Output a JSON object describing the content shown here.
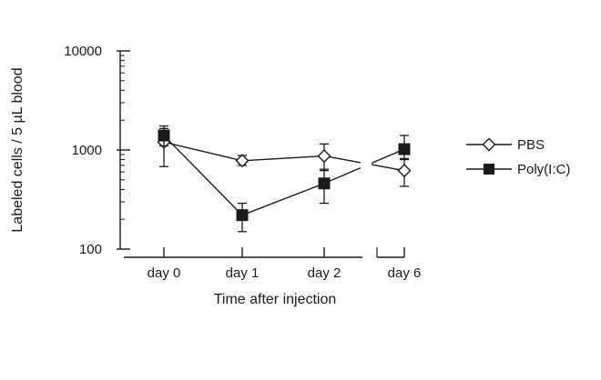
{
  "chart_data": {
    "type": "line",
    "title": "",
    "xlabel": "Time after injection",
    "ylabel": "Labeled cells / 5 µL blood",
    "yscale": "log",
    "ylim": [
      100,
      10000
    ],
    "yticks": [
      {
        "value": 100,
        "label": "100"
      },
      {
        "value": 1000,
        "label": "1000"
      },
      {
        "value": 10000,
        "label": "10000"
      }
    ],
    "categories": [
      "day 0",
      "day 1",
      "day 2",
      "day 6"
    ],
    "axis_break": "between day 2 and day 6",
    "grid": false,
    "legend_position": "right",
    "series": [
      {
        "name": "PBS",
        "marker": "open-diamond",
        "color": "#1a1a1a",
        "values": [
          1200,
          780,
          870,
          620
        ],
        "err_low": [
          680,
          700,
          620,
          430
        ],
        "err_high": [
          1650,
          880,
          1150,
          820
        ]
      },
      {
        "name": "Poly(I:C)",
        "marker": "filled-square",
        "color": "#1a1a1a",
        "values": [
          1400,
          220,
          460,
          1020
        ],
        "err_low": [
          1100,
          150,
          290,
          800
        ],
        "err_high": [
          1750,
          290,
          640,
          1400
        ]
      }
    ]
  }
}
